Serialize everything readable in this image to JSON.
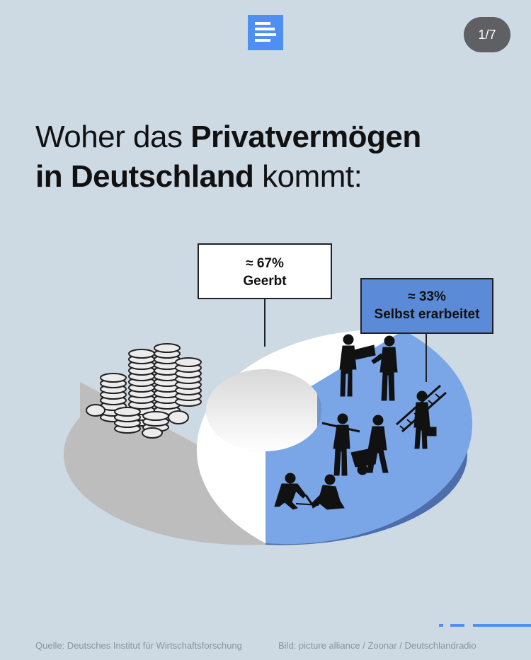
{
  "header": {
    "logo_icon": "deutschlandfunk-logo-icon",
    "page_indicator": "1/7"
  },
  "title": {
    "part1": "Woher das ",
    "bold1": "Privatvermögen",
    "bold2": "in Deutschland",
    "part2": " kommt:"
  },
  "chart_data": {
    "type": "pie",
    "donut": true,
    "style": "3d",
    "title": "Woher das Privatvermögen in Deutschland kommt:",
    "slices": [
      {
        "label": "Geerbt",
        "value_label": "≈ 67%",
        "value": 67,
        "color": "#ffffff",
        "side_color": "#bdbdbd",
        "illustration": "coin-stacks-icon"
      },
      {
        "label": "Selbst erarbeitet",
        "value_label": "≈ 33%",
        "value": 33,
        "color": "#7aa6e8",
        "side_color": "#4c6eaa",
        "illustration": "workers-silhouettes-icon"
      }
    ]
  },
  "footer": {
    "source": "Quelle: Deutsches Institut für Wirtschaftsforschung",
    "credit": "Bild: picture alliance / Zoonar / Deutschlandradio"
  },
  "colors": {
    "background": "#cdd9e3",
    "accent": "#4f8ef2",
    "pager_bg": "#5e6063"
  }
}
